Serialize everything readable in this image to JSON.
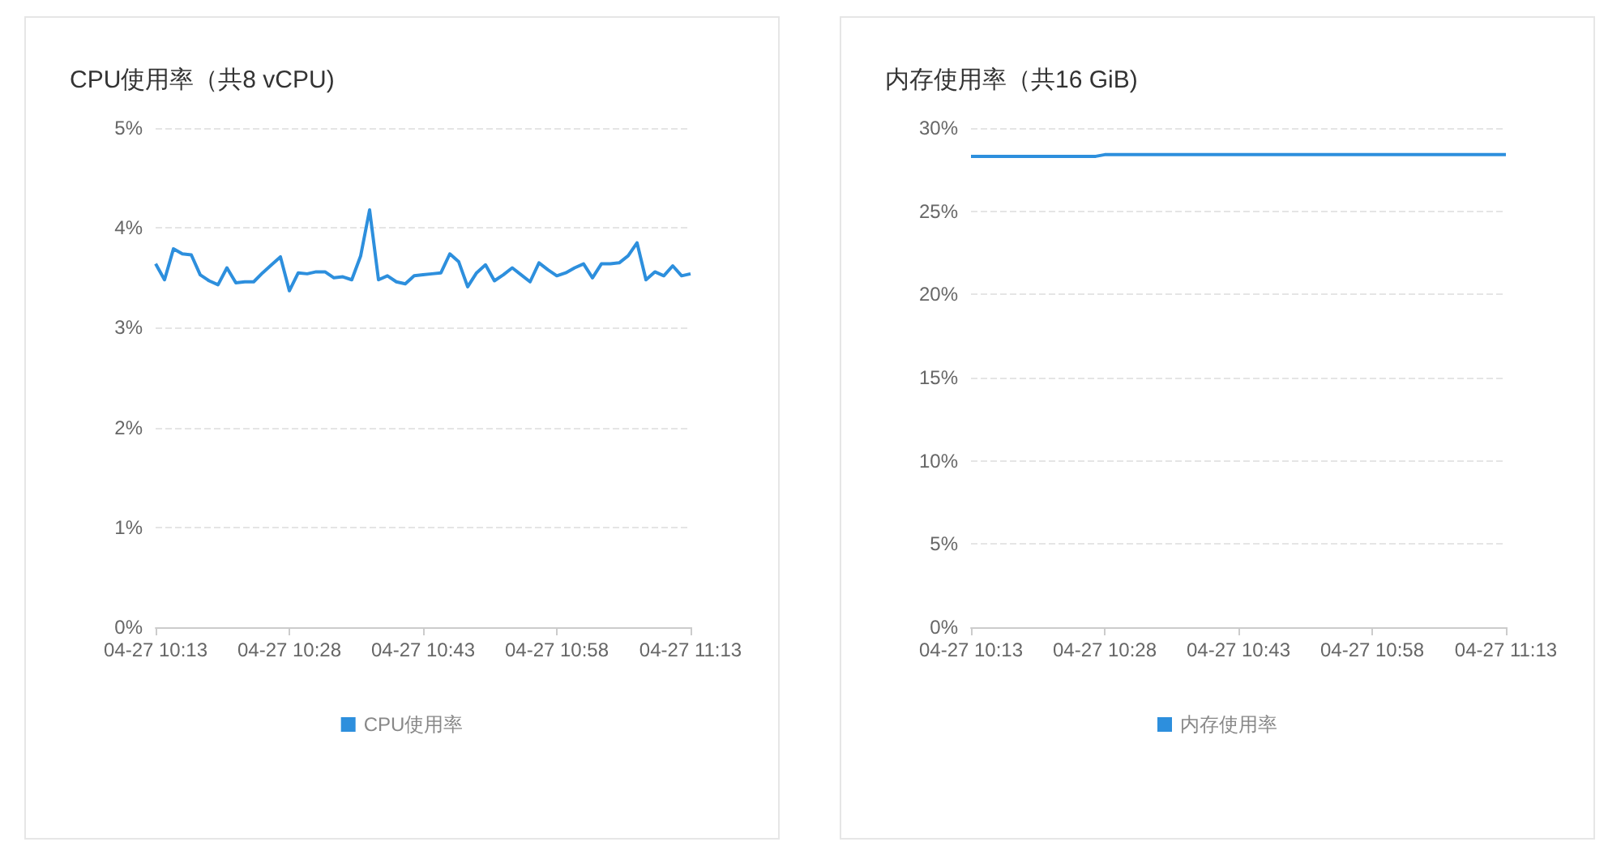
{
  "chart_data": [
    {
      "type": "line",
      "title": "CPU使用率（共8 vCPU)",
      "categories": [
        "04-27 10:13",
        null,
        null,
        null,
        null,
        null,
        null,
        null,
        null,
        null,
        null,
        null,
        null,
        null,
        null,
        "04-27 10:28",
        null,
        null,
        null,
        null,
        null,
        null,
        null,
        null,
        null,
        null,
        null,
        null,
        null,
        null,
        "04-27 10:43",
        null,
        null,
        null,
        null,
        null,
        null,
        null,
        null,
        null,
        null,
        null,
        null,
        null,
        null,
        "04-27 10:58",
        null,
        null,
        null,
        null,
        null,
        null,
        null,
        null,
        null,
        null,
        null,
        null,
        null,
        null,
        "04-27 11:13"
      ],
      "series": [
        {
          "name": "CPU使用率",
          "color": "#2d8fdd",
          "values": [
            3.64,
            3.48,
            3.79,
            3.74,
            3.73,
            3.53,
            3.47,
            3.43,
            3.6,
            3.45,
            3.46,
            3.46,
            3.55,
            3.63,
            3.71,
            3.37,
            3.55,
            3.54,
            3.56,
            3.56,
            3.5,
            3.51,
            3.48,
            3.72,
            4.18,
            3.48,
            3.52,
            3.46,
            3.44,
            3.52,
            3.53,
            3.54,
            3.55,
            3.74,
            3.66,
            3.41,
            3.55,
            3.63,
            3.47,
            3.53,
            3.6,
            3.53,
            3.46,
            3.65,
            3.58,
            3.52,
            3.55,
            3.6,
            3.64,
            3.5,
            3.64,
            3.64,
            3.65,
            3.72,
            3.85,
            3.48,
            3.56,
            3.52,
            3.62,
            3.52,
            3.54
          ]
        }
      ],
      "ylim": [
        0,
        5
      ],
      "yticks": [
        {
          "value": 0,
          "label": "0%"
        },
        {
          "value": 1,
          "label": "1%"
        },
        {
          "value": 2,
          "label": "2%"
        },
        {
          "value": 3,
          "label": "3%"
        },
        {
          "value": 4,
          "label": "4%"
        },
        {
          "value": 5,
          "label": "5%"
        }
      ],
      "grid": "y",
      "legend": "bottom",
      "marker": "none",
      "line_style": "solid"
    },
    {
      "type": "line",
      "title": "内存使用率（共16 GiB)",
      "categories": [
        "04-27 10:13",
        null,
        null,
        null,
        null,
        null,
        null,
        null,
        null,
        null,
        null,
        null,
        null,
        null,
        null,
        "04-27 10:28",
        null,
        null,
        null,
        null,
        null,
        null,
        null,
        null,
        null,
        null,
        null,
        null,
        null,
        null,
        "04-27 10:43",
        null,
        null,
        null,
        null,
        null,
        null,
        null,
        null,
        null,
        null,
        null,
        null,
        null,
        null,
        "04-27 10:58",
        null,
        null,
        null,
        null,
        null,
        null,
        null,
        null,
        null,
        null,
        null,
        null,
        null,
        null,
        "04-27 11:13"
      ],
      "series": [
        {
          "name": "内存使用率",
          "color": "#2d8fdd",
          "values": [
            28.3,
            28.3,
            28.3,
            28.3,
            28.3,
            28.3,
            28.3,
            28.3,
            28.3,
            28.3,
            28.3,
            28.3,
            28.3,
            28.3,
            28.3,
            28.4,
            28.4,
            28.4,
            28.4,
            28.4,
            28.4,
            28.4,
            28.4,
            28.4,
            28.4,
            28.4,
            28.4,
            28.4,
            28.4,
            28.4,
            28.4,
            28.4,
            28.4,
            28.4,
            28.4,
            28.4,
            28.4,
            28.4,
            28.4,
            28.4,
            28.4,
            28.4,
            28.4,
            28.4,
            28.4,
            28.4,
            28.4,
            28.4,
            28.4,
            28.4,
            28.4,
            28.4,
            28.4,
            28.4,
            28.4,
            28.4,
            28.4,
            28.4,
            28.4,
            28.4,
            28.4
          ]
        }
      ],
      "ylim": [
        0,
        30
      ],
      "yticks": [
        {
          "value": 0,
          "label": "0%"
        },
        {
          "value": 5,
          "label": "5%"
        },
        {
          "value": 10,
          "label": "10%"
        },
        {
          "value": 15,
          "label": "15%"
        },
        {
          "value": 20,
          "label": "20%"
        },
        {
          "value": 25,
          "label": "25%"
        },
        {
          "value": 30,
          "label": "30%"
        }
      ],
      "grid": "y",
      "legend": "bottom",
      "marker": "none",
      "line_style": "solid"
    }
  ]
}
